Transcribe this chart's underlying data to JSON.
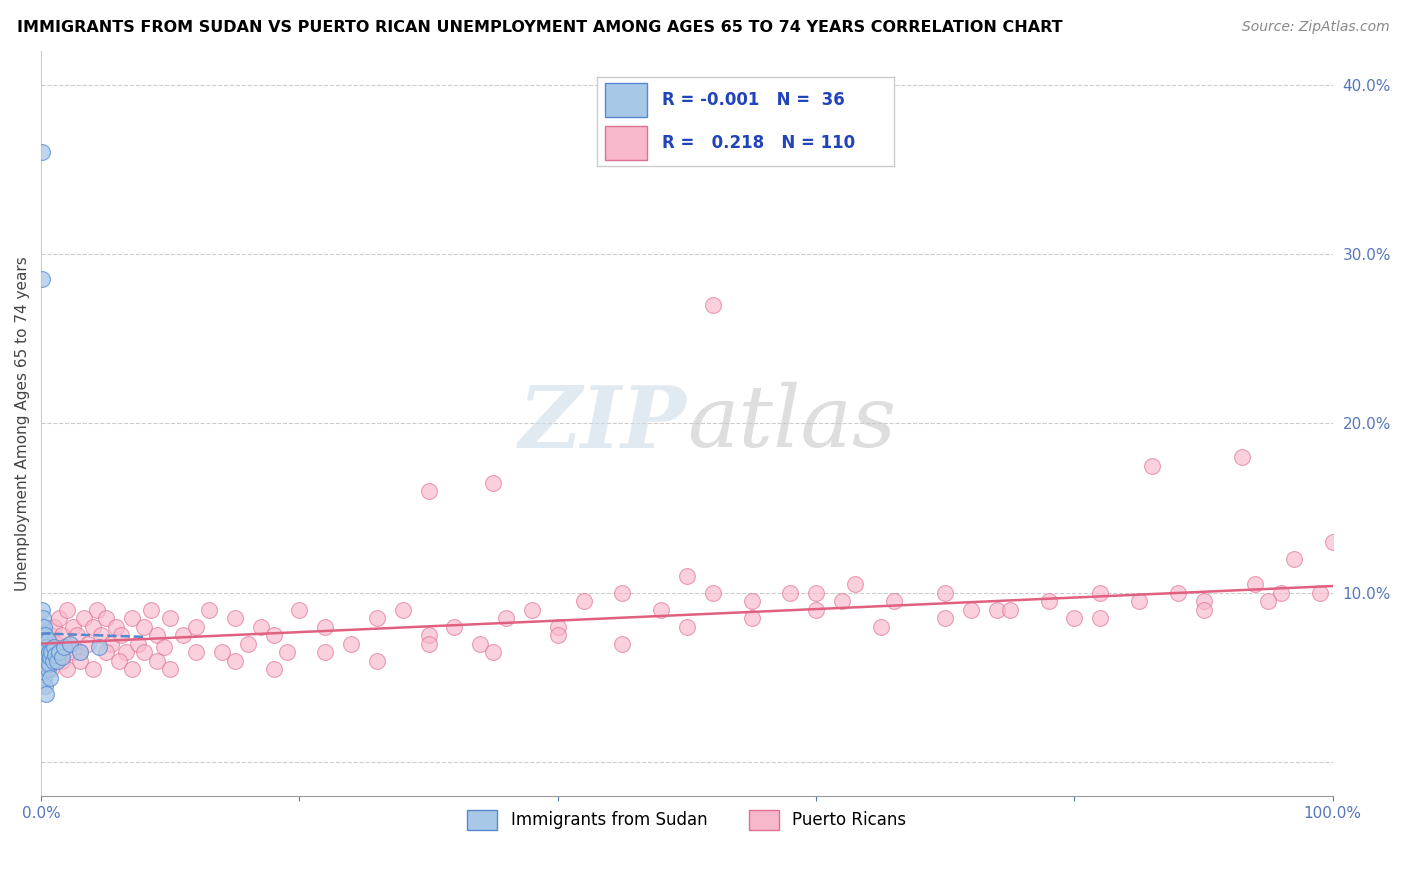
{
  "title": "IMMIGRANTS FROM SUDAN VS PUERTO RICAN UNEMPLOYMENT AMONG AGES 65 TO 74 YEARS CORRELATION CHART",
  "source": "Source: ZipAtlas.com",
  "ylabel": "Unemployment Among Ages 65 to 74 years",
  "xlim": [
    0.0,
    1.0
  ],
  "ylim": [
    -0.02,
    0.42
  ],
  "xticks": [
    0.0,
    0.2,
    0.4,
    0.6,
    0.8,
    1.0
  ],
  "xticklabels": [
    "0.0%",
    "",
    "",
    "",
    "",
    "100.0%"
  ],
  "yticks": [
    0.0,
    0.1,
    0.2,
    0.3,
    0.4
  ],
  "yticklabels_right": [
    "",
    "10.0%",
    "20.0%",
    "30.0%",
    "40.0%"
  ],
  "r1": "-0.001",
  "n1": "36",
  "r2": "0.218",
  "n2": "110",
  "blue_face": "#a8c8e8",
  "blue_edge": "#5588cc",
  "pink_face": "#f8b8cc",
  "pink_edge": "#e07090",
  "blue_line": "#5588cc",
  "pink_line": "#e06080",
  "grid_color": "#cccccc",
  "tick_color": "#5577bb",
  "sudan_x": [
    0.0008,
    0.0008,
    0.001,
    0.001,
    0.001,
    0.0015,
    0.0015,
    0.002,
    0.002,
    0.002,
    0.002,
    0.003,
    0.003,
    0.003,
    0.003,
    0.004,
    0.004,
    0.004,
    0.005,
    0.005,
    0.005,
    0.006,
    0.006,
    0.007,
    0.007,
    0.008,
    0.009,
    0.01,
    0.011,
    0.012,
    0.014,
    0.016,
    0.018,
    0.022,
    0.03,
    0.045
  ],
  "sudan_y": [
    0.36,
    0.285,
    0.09,
    0.08,
    0.075,
    0.085,
    0.07,
    0.08,
    0.07,
    0.06,
    0.05,
    0.075,
    0.065,
    0.058,
    0.045,
    0.068,
    0.06,
    0.04,
    0.072,
    0.063,
    0.055,
    0.065,
    0.058,
    0.062,
    0.05,
    0.065,
    0.06,
    0.068,
    0.063,
    0.06,
    0.065,
    0.062,
    0.068,
    0.07,
    0.065,
    0.068
  ],
  "pr_x": [
    0.005,
    0.008,
    0.01,
    0.012,
    0.014,
    0.016,
    0.018,
    0.02,
    0.022,
    0.025,
    0.028,
    0.03,
    0.033,
    0.036,
    0.04,
    0.043,
    0.046,
    0.05,
    0.054,
    0.058,
    0.062,
    0.066,
    0.07,
    0.075,
    0.08,
    0.085,
    0.09,
    0.095,
    0.1,
    0.11,
    0.12,
    0.13,
    0.14,
    0.15,
    0.16,
    0.17,
    0.18,
    0.19,
    0.2,
    0.22,
    0.24,
    0.26,
    0.28,
    0.3,
    0.32,
    0.34,
    0.36,
    0.38,
    0.4,
    0.42,
    0.45,
    0.48,
    0.5,
    0.52,
    0.55,
    0.58,
    0.6,
    0.63,
    0.66,
    0.7,
    0.74,
    0.78,
    0.82,
    0.86,
    0.9,
    0.93,
    0.96,
    1.0,
    0.008,
    0.012,
    0.016,
    0.02,
    0.025,
    0.03,
    0.04,
    0.05,
    0.06,
    0.07,
    0.08,
    0.09,
    0.1,
    0.12,
    0.15,
    0.18,
    0.22,
    0.26,
    0.3,
    0.35,
    0.4,
    0.45,
    0.5,
    0.55,
    0.6,
    0.65,
    0.7,
    0.75,
    0.8,
    0.85,
    0.9,
    0.95,
    0.3,
    0.35,
    0.52,
    0.62,
    0.72,
    0.82,
    0.88,
    0.94,
    0.97,
    0.99
  ],
  "pr_y": [
    0.065,
    0.075,
    0.08,
    0.07,
    0.085,
    0.075,
    0.065,
    0.09,
    0.07,
    0.08,
    0.075,
    0.065,
    0.085,
    0.07,
    0.08,
    0.09,
    0.075,
    0.085,
    0.07,
    0.08,
    0.075,
    0.065,
    0.085,
    0.07,
    0.08,
    0.09,
    0.075,
    0.068,
    0.085,
    0.075,
    0.08,
    0.09,
    0.065,
    0.085,
    0.07,
    0.08,
    0.075,
    0.065,
    0.09,
    0.08,
    0.07,
    0.085,
    0.09,
    0.075,
    0.08,
    0.07,
    0.085,
    0.09,
    0.08,
    0.095,
    0.1,
    0.09,
    0.11,
    0.27,
    0.095,
    0.1,
    0.1,
    0.105,
    0.095,
    0.1,
    0.09,
    0.095,
    0.1,
    0.175,
    0.095,
    0.18,
    0.1,
    0.13,
    0.055,
    0.065,
    0.06,
    0.055,
    0.065,
    0.06,
    0.055,
    0.065,
    0.06,
    0.055,
    0.065,
    0.06,
    0.055,
    0.065,
    0.06,
    0.055,
    0.065,
    0.06,
    0.07,
    0.065,
    0.075,
    0.07,
    0.08,
    0.085,
    0.09,
    0.08,
    0.085,
    0.09,
    0.085,
    0.095,
    0.09,
    0.095,
    0.16,
    0.165,
    0.1,
    0.095,
    0.09,
    0.085,
    0.1,
    0.105,
    0.12,
    0.1
  ]
}
